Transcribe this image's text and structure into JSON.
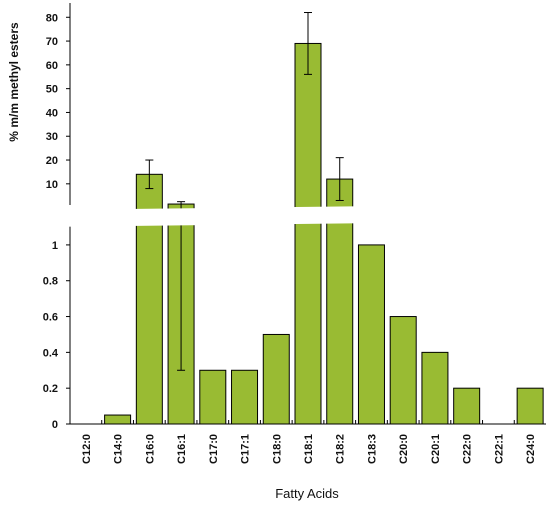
{
  "chart_data": {
    "type": "bar",
    "title": "",
    "xlabel": "Fatty Acids",
    "ylabel": "% m/m methyl esters",
    "bar_color": "#99bb33",
    "broken_axis": true,
    "lower_ylim": [
      0,
      1.1
    ],
    "upper_ylim": [
      1.1,
      86
    ],
    "lower_ticks": [
      "0",
      "0.2",
      "0.4",
      "0.6",
      "0.8",
      "1"
    ],
    "upper_ticks": [
      "10",
      "20",
      "30",
      "40",
      "50",
      "60",
      "70",
      "80"
    ],
    "categories": [
      "C12:0",
      "C14:0",
      "C16:0",
      "C16:1",
      "C17:0",
      "C17:1",
      "C18:0",
      "C18:1",
      "C18:2",
      "C18:3",
      "C20:0",
      "C20:1",
      "C22:0",
      "C22:1",
      "C24:0"
    ],
    "values": [
      0,
      0.05,
      14,
      1.5,
      0.3,
      0.3,
      0.5,
      69,
      12,
      1,
      0.6,
      0.4,
      0.2,
      0,
      0.2
    ],
    "error_bars": [
      {
        "category": "C16:0",
        "low": 8,
        "high": 20
      },
      {
        "category": "C16:1",
        "low": 0.3,
        "high": 2.5
      },
      {
        "category": "C18:1",
        "low": 56,
        "high": 82
      },
      {
        "category": "C18:2",
        "low": 3,
        "high": 21
      }
    ]
  }
}
